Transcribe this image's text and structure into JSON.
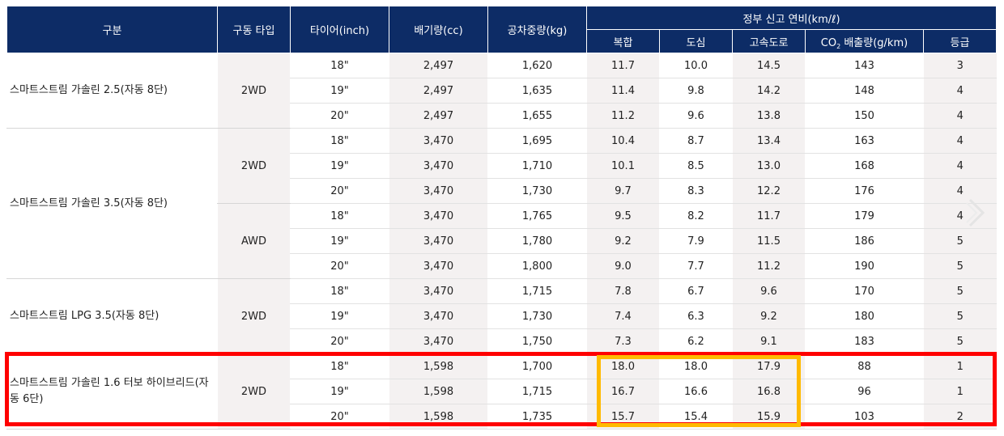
{
  "headers": {
    "category": "구분",
    "drive_type": "구동 타입",
    "tire": "타이어(inch)",
    "displacement": "배기량(cc)",
    "curb_weight": "공차중량(kg)",
    "fuel_group": "정부 신고 연비(km/ℓ)",
    "combined": "복합",
    "city": "도심",
    "highway": "고속도로",
    "co2_prefix": "CO",
    "co2_sub": "2",
    "co2_suffix": " 배출량(g/km)",
    "grade": "등급"
  },
  "models": [
    {
      "name": "스마트스트림 가솔린 2.5(자동 8단)",
      "drives": [
        {
          "drive": "2WD",
          "rows": [
            {
              "tire": "18\"",
              "cc": "2,497",
              "weight": "1,620",
              "combined": "11.7",
              "city": "10.0",
              "highway": "14.5",
              "co2": "143",
              "grade": "3"
            },
            {
              "tire": "19\"",
              "cc": "2,497",
              "weight": "1,635",
              "combined": "11.4",
              "city": "9.8",
              "highway": "14.2",
              "co2": "148",
              "grade": "4"
            },
            {
              "tire": "20\"",
              "cc": "2,497",
              "weight": "1,655",
              "combined": "11.2",
              "city": "9.6",
              "highway": "13.8",
              "co2": "150",
              "grade": "4"
            }
          ]
        }
      ]
    },
    {
      "name": "스마트스트림 가솔린 3.5(자동 8단)",
      "drives": [
        {
          "drive": "2WD",
          "rows": [
            {
              "tire": "18\"",
              "cc": "3,470",
              "weight": "1,695",
              "combined": "10.4",
              "city": "8.7",
              "highway": "13.4",
              "co2": "163",
              "grade": "4"
            },
            {
              "tire": "19\"",
              "cc": "3,470",
              "weight": "1,710",
              "combined": "10.1",
              "city": "8.5",
              "highway": "13.0",
              "co2": "168",
              "grade": "4"
            },
            {
              "tire": "20\"",
              "cc": "3,470",
              "weight": "1,730",
              "combined": "9.7",
              "city": "8.3",
              "highway": "12.2",
              "co2": "176",
              "grade": "4"
            }
          ]
        },
        {
          "drive": "AWD",
          "rows": [
            {
              "tire": "18\"",
              "cc": "3,470",
              "weight": "1,765",
              "combined": "9.5",
              "city": "8.2",
              "highway": "11.7",
              "co2": "179",
              "grade": "4"
            },
            {
              "tire": "19\"",
              "cc": "3,470",
              "weight": "1,780",
              "combined": "9.2",
              "city": "7.9",
              "highway": "11.5",
              "co2": "186",
              "grade": "5"
            },
            {
              "tire": "20\"",
              "cc": "3,470",
              "weight": "1,800",
              "combined": "9.0",
              "city": "7.7",
              "highway": "11.2",
              "co2": "190",
              "grade": "5"
            }
          ]
        }
      ]
    },
    {
      "name": "스마트스트림 LPG 3.5(자동 8단)",
      "drives": [
        {
          "drive": "2WD",
          "rows": [
            {
              "tire": "18\"",
              "cc": "3,470",
              "weight": "1,715",
              "combined": "7.8",
              "city": "6.7",
              "highway": "9.6",
              "co2": "170",
              "grade": "5"
            },
            {
              "tire": "19\"",
              "cc": "3,470",
              "weight": "1,730",
              "combined": "7.4",
              "city": "6.3",
              "highway": "9.2",
              "co2": "180",
              "grade": "5"
            },
            {
              "tire": "20\"",
              "cc": "3,470",
              "weight": "1,750",
              "combined": "7.3",
              "city": "6.2",
              "highway": "9.1",
              "co2": "183",
              "grade": "5"
            }
          ]
        }
      ]
    },
    {
      "name": "스마트스트림 가솔린 1.6 터보 하이브리드(자동 6단)",
      "drives": [
        {
          "drive": "2WD",
          "rows": [
            {
              "tire": "18\"",
              "cc": "1,598",
              "weight": "1,700",
              "combined": "18.0",
              "city": "18.0",
              "highway": "17.9",
              "co2": "88",
              "grade": "1"
            },
            {
              "tire": "19\"",
              "cc": "1,598",
              "weight": "1,715",
              "combined": "16.7",
              "city": "16.6",
              "highway": "16.8",
              "co2": "96",
              "grade": "1"
            },
            {
              "tire": "20\"",
              "cc": "1,598",
              "weight": "1,735",
              "combined": "15.7",
              "city": "15.4",
              "highway": "15.9",
              "co2": "103",
              "grade": "2"
            }
          ]
        }
      ]
    }
  ],
  "colors": {
    "header_bg": "#0d2c66",
    "shaded_column": "#f4f1f1",
    "highlight_red": "#ff0000",
    "highlight_yellow": "#ffba00"
  },
  "icons": {
    "next": "chevron-right-icon"
  }
}
